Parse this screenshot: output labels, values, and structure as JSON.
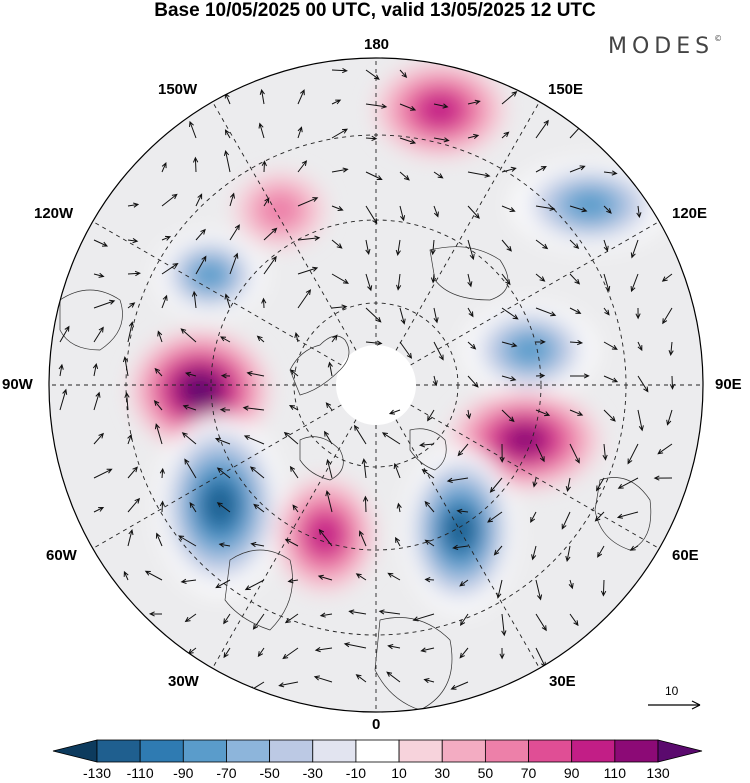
{
  "header": {
    "title": "Base 10/05/2025 00 UTC, valid 13/05/2025 12 UTC",
    "brand": "MODES",
    "brand_mark": "©"
  },
  "map": {
    "projection": "north-polar-stereographic",
    "longitude_labels": {
      "top": "180",
      "bottom": "0",
      "left": "90W",
      "right": "90E",
      "upper_left_1": "150W",
      "upper_left_2": "120W",
      "lower_left_1": "60W",
      "lower_left_2": "30W",
      "upper_right_1": "150E",
      "upper_right_2": "120E",
      "lower_right_1": "60E",
      "lower_right_2": "30E"
    },
    "wind_reference_vector": "10",
    "anomaly_centers": [
      {
        "name": "positive-150E",
        "sign": "positive",
        "level": 70
      },
      {
        "name": "negative-120E",
        "sign": "negative",
        "level": -70
      },
      {
        "name": "positive-160W",
        "sign": "positive",
        "level": 30
      },
      {
        "name": "negative-120W",
        "sign": "negative",
        "level": -70
      },
      {
        "name": "positive-90W",
        "sign": "positive",
        "level": 110
      },
      {
        "name": "negative-100E",
        "sign": "negative",
        "level": -70
      },
      {
        "name": "positive-70E",
        "sign": "positive",
        "level": 90
      },
      {
        "name": "negative-55W",
        "sign": "negative",
        "level": -110
      },
      {
        "name": "positive-20W",
        "sign": "positive",
        "level": 70
      },
      {
        "name": "negative-35E",
        "sign": "negative",
        "level": -110
      }
    ]
  },
  "colorbar": {
    "ticks": [
      "-130",
      "-110",
      "-90",
      "-70",
      "-50",
      "-30",
      "-10",
      "10",
      "30",
      "50",
      "70",
      "90",
      "110",
      "130"
    ],
    "colors": [
      "#0d3b5e",
      "#1f5f8f",
      "#2f7bb2",
      "#5a9ccb",
      "#8db5db",
      "#bcc9e4",
      "#e2e4f0",
      "#ffffff",
      "#f7d3dc",
      "#f3acc2",
      "#ed80a9",
      "#e04e95",
      "#c21e86",
      "#8c0a76",
      "#5b0a6e"
    ]
  }
}
